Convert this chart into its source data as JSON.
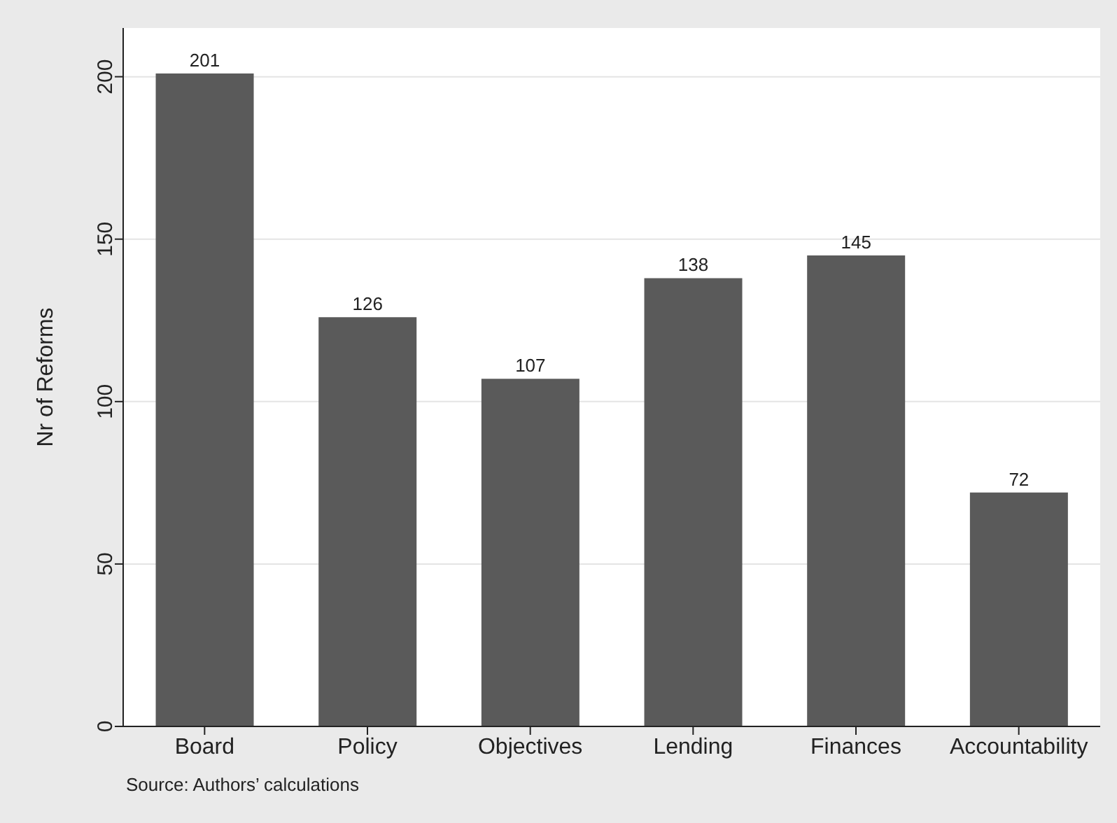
{
  "chart_data": {
    "type": "bar",
    "ylabel": "Nr of Reforms",
    "categories": [
      "Board",
      "Policy",
      "Objectives",
      "Lending",
      "Finances",
      "Accountability"
    ],
    "values": [
      201,
      126,
      107,
      138,
      145,
      72
    ],
    "color": "#5a5a5a",
    "ylim": [
      0,
      215
    ],
    "yticks": [
      0,
      50,
      100,
      150,
      200
    ],
    "grid": "y",
    "data_labels": true,
    "annotations": [
      "Source: Authors’ calculations"
    ]
  }
}
